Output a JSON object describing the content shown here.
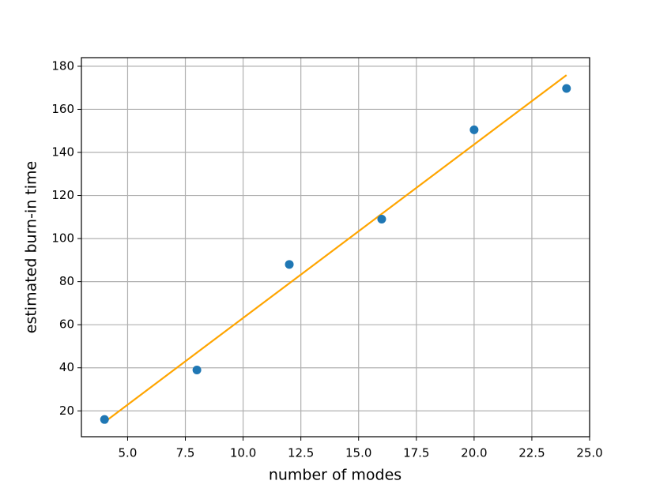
{
  "chart_data": {
    "type": "scatter",
    "xlabel": "number of modes",
    "ylabel": "estimated burn-in time",
    "series": [
      {
        "type": "scatter",
        "color": "#1f77b4",
        "x": [
          4,
          8,
          12,
          16,
          20,
          24
        ],
        "values": [
          16,
          39,
          88,
          109,
          150.5,
          169.7
        ]
      },
      {
        "type": "line",
        "color": "#ffa500",
        "x": [
          4,
          24
        ],
        "values": [
          14.8,
          175.9
        ]
      }
    ],
    "xlim": [
      3,
      25
    ],
    "ylim": [
      8,
      184
    ],
    "xticks": [
      {
        "value": 5,
        "label": "5.0"
      },
      7.5,
      {
        "value": 10,
        "label": "10.0"
      },
      12.5,
      {
        "value": 15,
        "label": "15.0"
      },
      17.5,
      {
        "value": 20,
        "label": "20.0"
      },
      22.5,
      {
        "value": 25,
        "label": "25.0"
      }
    ],
    "yticks": [
      20,
      40,
      60,
      80,
      100,
      120,
      140,
      160,
      180
    ],
    "grid": true
  }
}
